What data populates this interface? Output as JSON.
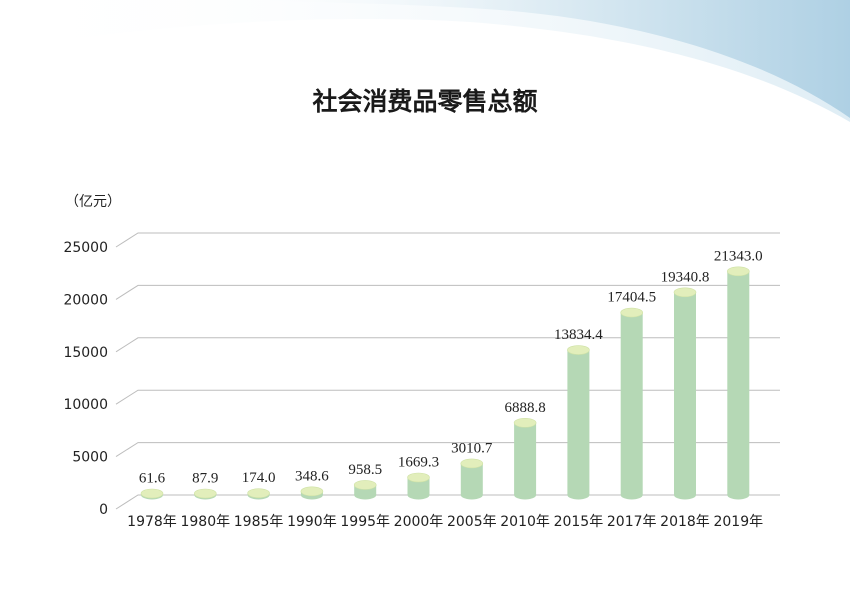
{
  "chart_data": {
    "type": "bar",
    "title": "社会消费品零售总额",
    "unit_label": "（亿元）",
    "categories": [
      "1978年",
      "1980年",
      "1985年",
      "1990年",
      "1995年",
      "2000年",
      "2005年",
      "2010年",
      "2015年",
      "2017年",
      "2018年",
      "2019年"
    ],
    "values": [
      61.6,
      87.9,
      174.0,
      348.6,
      958.5,
      1669.3,
      3010.7,
      6888.8,
      13834.4,
      17404.5,
      19340.8,
      21343.0
    ],
    "value_labels": [
      "61.6",
      "87.9",
      "174.0",
      "348.6",
      "958.5",
      "1669.3",
      "3010.7",
      "6888.8",
      "13834.4",
      "17404.5",
      "19340.8",
      "21343.0"
    ],
    "yticks": [
      "0",
      "5000",
      "10000",
      "15000",
      "20000",
      "25000"
    ],
    "ylim": [
      0,
      25000
    ],
    "grid": true,
    "colors": {
      "bar": "#b5d8b5",
      "bar_top": "#e2eebb",
      "grid": "#bdbdbd"
    }
  }
}
